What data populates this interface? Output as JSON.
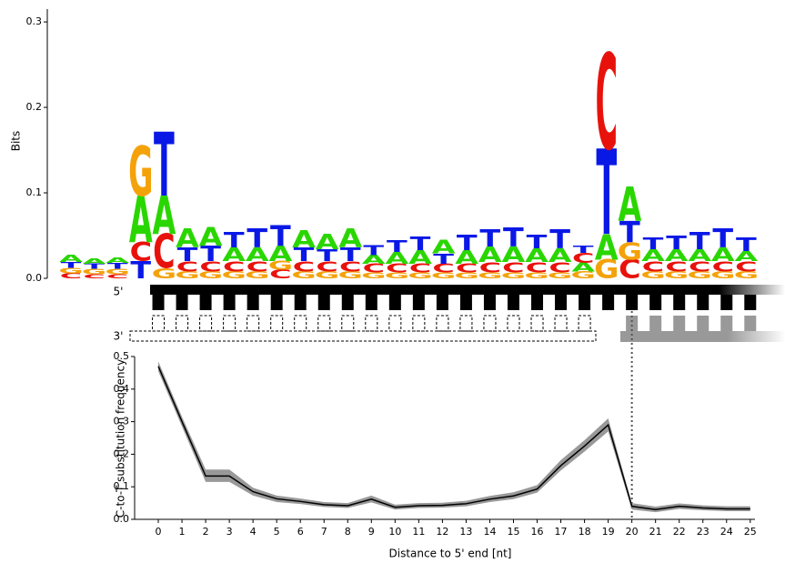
{
  "chart_data": [
    {
      "type": "logo",
      "y_label": "Bits",
      "ylim": [
        0,
        0.315
      ],
      "yticks": [
        {
          "value": 0,
          "label": "0.0"
        },
        0.1,
        0.2,
        0.3
      ],
      "letter_colors": {
        "A": "#2ad600",
        "C": "#e8120c",
        "G": "#f4a20a",
        "T": "#0a18e6"
      },
      "columns": [
        {
          "letters": [
            "C",
            "G",
            "T",
            "A"
          ],
          "bits": [
            0.006,
            0.006,
            0.007,
            0.008
          ]
        },
        {
          "letters": [
            "C",
            "G",
            "T",
            "A"
          ],
          "bits": [
            0.005,
            0.006,
            0.006,
            0.006
          ]
        },
        {
          "letters": [
            "C",
            "G",
            "T",
            "A"
          ],
          "bits": [
            0.005,
            0.006,
            0.007,
            0.006
          ]
        },
        {
          "letters": [
            "T",
            "C",
            "A",
            "G"
          ],
          "bits": [
            0.02,
            0.022,
            0.055,
            0.058
          ]
        },
        {
          "letters": [
            "G",
            "C",
            "A",
            "T"
          ],
          "bits": [
            0.012,
            0.04,
            0.045,
            0.075
          ]
        },
        {
          "letters": [
            "G",
            "C",
            "T",
            "A"
          ],
          "bits": [
            0.008,
            0.012,
            0.016,
            0.022
          ]
        },
        {
          "letters": [
            "G",
            "C",
            "T",
            "A"
          ],
          "bits": [
            0.008,
            0.012,
            0.018,
            0.022
          ]
        },
        {
          "letters": [
            "G",
            "C",
            "A",
            "T"
          ],
          "bits": [
            0.008,
            0.012,
            0.016,
            0.018
          ]
        },
        {
          "letters": [
            "G",
            "C",
            "A",
            "T"
          ],
          "bits": [
            0.008,
            0.012,
            0.016,
            0.022
          ]
        },
        {
          "letters": [
            "C",
            "G",
            "A",
            "T"
          ],
          "bits": [
            0.01,
            0.01,
            0.018,
            0.024
          ]
        },
        {
          "letters": [
            "G",
            "C",
            "T",
            "A"
          ],
          "bits": [
            0.008,
            0.012,
            0.016,
            0.02
          ]
        },
        {
          "letters": [
            "G",
            "C",
            "T",
            "A"
          ],
          "bits": [
            0.008,
            0.012,
            0.014,
            0.018
          ]
        },
        {
          "letters": [
            "G",
            "C",
            "T",
            "A"
          ],
          "bits": [
            0.008,
            0.012,
            0.016,
            0.022
          ]
        },
        {
          "letters": [
            "G",
            "C",
            "A",
            "T"
          ],
          "bits": [
            0.007,
            0.01,
            0.01,
            0.012
          ]
        },
        {
          "letters": [
            "G",
            "C",
            "A",
            "T"
          ],
          "bits": [
            0.007,
            0.01,
            0.014,
            0.014
          ]
        },
        {
          "letters": [
            "G",
            "C",
            "A",
            "T"
          ],
          "bits": [
            0.007,
            0.01,
            0.016,
            0.016
          ]
        },
        {
          "letters": [
            "G",
            "C",
            "T",
            "A"
          ],
          "bits": [
            0.007,
            0.01,
            0.012,
            0.016
          ]
        },
        {
          "letters": [
            "G",
            "C",
            "A",
            "T"
          ],
          "bits": [
            0.007,
            0.01,
            0.016,
            0.018
          ]
        },
        {
          "letters": [
            "G",
            "C",
            "A",
            "T"
          ],
          "bits": [
            0.007,
            0.012,
            0.018,
            0.02
          ]
        },
        {
          "letters": [
            "G",
            "C",
            "A",
            "T"
          ],
          "bits": [
            0.007,
            0.012,
            0.018,
            0.022
          ]
        },
        {
          "letters": [
            "G",
            "C",
            "A",
            "T"
          ],
          "bits": [
            0.007,
            0.012,
            0.016,
            0.016
          ]
        },
        {
          "letters": [
            "G",
            "C",
            "A",
            "T"
          ],
          "bits": [
            0.007,
            0.012,
            0.016,
            0.022
          ]
        },
        {
          "letters": [
            "G",
            "A",
            "C",
            "T"
          ],
          "bits": [
            0.008,
            0.01,
            0.012,
            0.008
          ]
        },
        {
          "letters": [
            "G",
            "A",
            "T",
            "C"
          ],
          "bits": [
            0.022,
            0.03,
            0.1,
            0.112
          ]
        },
        {
          "letters": [
            "C",
            "G",
            "T",
            "A"
          ],
          "bits": [
            0.022,
            0.02,
            0.025,
            0.04
          ]
        },
        {
          "letters": [
            "G",
            "C",
            "A",
            "T"
          ],
          "bits": [
            0.008,
            0.012,
            0.014,
            0.014
          ]
        },
        {
          "letters": [
            "G",
            "C",
            "A",
            "T"
          ],
          "bits": [
            0.008,
            0.012,
            0.014,
            0.016
          ]
        },
        {
          "letters": [
            "G",
            "C",
            "A",
            "T"
          ],
          "bits": [
            0.008,
            0.012,
            0.014,
            0.02
          ]
        },
        {
          "letters": [
            "G",
            "C",
            "A",
            "T"
          ],
          "bits": [
            0.008,
            0.012,
            0.016,
            0.022
          ]
        },
        {
          "letters": [
            "G",
            "C",
            "A",
            "T"
          ],
          "bits": [
            0.008,
            0.012,
            0.012,
            0.016
          ]
        }
      ]
    },
    {
      "type": "line",
      "x_label": "Distance to 5' end [nt]",
      "y_label": "C-to-T substitution frequency",
      "xlim": [
        -1,
        25.2
      ],
      "xticks": [
        0,
        1,
        2,
        3,
        4,
        5,
        6,
        7,
        8,
        9,
        10,
        11,
        12,
        13,
        14,
        15,
        16,
        17,
        18,
        19,
        20,
        21,
        22,
        23,
        24,
        25
      ],
      "ylim": [
        0,
        0.5
      ],
      "yticks": [
        {
          "value": 0,
          "label": "0.0"
        },
        0.1,
        0.2,
        0.3,
        0.4,
        0.5
      ],
      "vline": 20,
      "x": [
        0,
        1,
        2,
        3,
        4,
        5,
        6,
        7,
        8,
        9,
        10,
        11,
        12,
        13,
        14,
        15,
        16,
        17,
        18,
        19,
        20,
        21,
        22,
        23,
        24,
        25
      ],
      "series": [
        {
          "color": "#000000",
          "values": [
            0.47,
            0.3,
            0.133,
            0.133,
            0.085,
            0.063,
            0.055,
            0.045,
            0.042,
            0.062,
            0.037,
            0.042,
            0.043,
            0.048,
            0.062,
            0.072,
            0.093,
            0.165,
            0.225,
            0.29,
            0.04,
            0.03,
            0.04,
            0.035,
            0.032,
            0.032
          ]
        }
      ],
      "band": {
        "color": "#999999",
        "lower": [
          0.455,
          0.285,
          0.115,
          0.115,
          0.073,
          0.053,
          0.047,
          0.038,
          0.035,
          0.052,
          0.03,
          0.035,
          0.036,
          0.04,
          0.053,
          0.062,
          0.082,
          0.15,
          0.208,
          0.27,
          0.03,
          0.022,
          0.032,
          0.028,
          0.025,
          0.025
        ],
        "upper": [
          0.485,
          0.315,
          0.153,
          0.153,
          0.097,
          0.073,
          0.064,
          0.053,
          0.05,
          0.073,
          0.045,
          0.05,
          0.051,
          0.057,
          0.072,
          0.083,
          0.105,
          0.182,
          0.243,
          0.31,
          0.05,
          0.039,
          0.049,
          0.043,
          0.04,
          0.04
        ]
      }
    }
  ],
  "schematic": {
    "top_label": "5'",
    "bottom_label": "3'"
  }
}
